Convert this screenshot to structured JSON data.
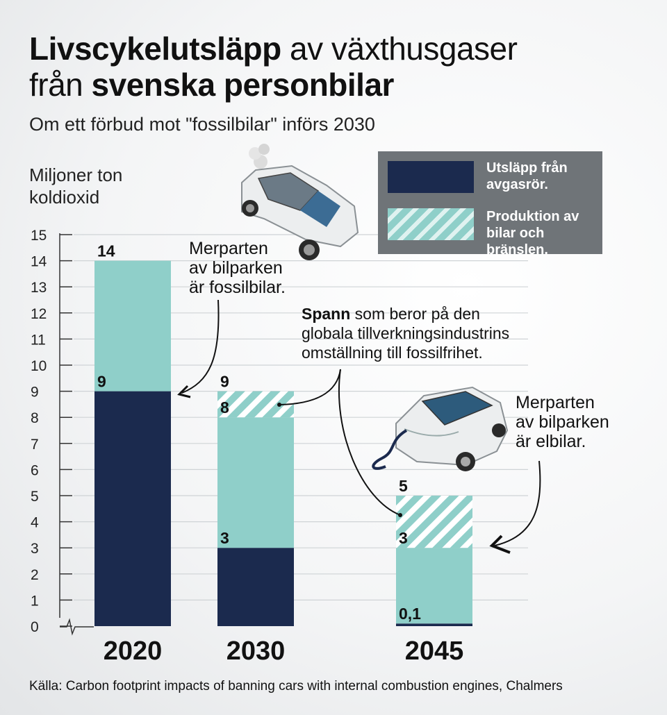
{
  "title": {
    "bold1": "Livscykelutsläpp",
    "normal1": " av växthusgaser",
    "normal2": "från ",
    "bold2": "svenska personbilar"
  },
  "subtitle": "Om ett förbud mot \"fossilbilar\" införs 2030",
  "unit_line1": "Miljoner ton",
  "unit_line2": "koldioxid",
  "legend": {
    "exhaust_line1": "Utsläpp från",
    "exhaust_line2": "avgasrör.",
    "production_line1": "Produktion av",
    "production_line2": "bilar och bränslen."
  },
  "notes": {
    "fossil_line1": "Merparten",
    "fossil_line2": "av bilparken",
    "fossil_line3": "är fossilbilar.",
    "span_bold": "Spann",
    "span_line1": " som beror på den",
    "span_line2": "globala tillverkningsindustrins",
    "span_line3": "omställning till fossilfrihet.",
    "el_line1": "Merparten",
    "el_line2": "av bilparken",
    "el_line3": "är elbilar."
  },
  "source": "Källa: Carbon footprint impacts of banning cars with internal combustion engines, Chalmers",
  "colors": {
    "exhaust": "#1b2a4e",
    "production": "#8fcfc9",
    "legend_bg": "#6f7478"
  },
  "chart_data": {
    "type": "bar",
    "stacked": true,
    "categories": [
      "2020",
      "2030",
      "2045"
    ],
    "series": [
      {
        "name": "Utsläpp från avgasrör.",
        "values": [
          9,
          3,
          0.1
        ]
      },
      {
        "name": "Produktion av bilar och bränslen.",
        "values": [
          5,
          5,
          2.9
        ]
      },
      {
        "name": "Spann",
        "values": [
          0,
          1,
          2
        ]
      }
    ],
    "value_labels": [
      {
        "bottom": "9",
        "top": "14"
      },
      {
        "bottom": "3",
        "mid": "8",
        "top": "9"
      },
      {
        "bottom": "0,1",
        "mid": "3",
        "top": "5"
      }
    ],
    "yticks": [
      "0",
      "1",
      "2",
      "3",
      "4",
      "5",
      "6",
      "7",
      "8",
      "9",
      "10",
      "11",
      "12",
      "13",
      "14",
      "15"
    ],
    "ylim": [
      0,
      15
    ],
    "grid": true
  }
}
